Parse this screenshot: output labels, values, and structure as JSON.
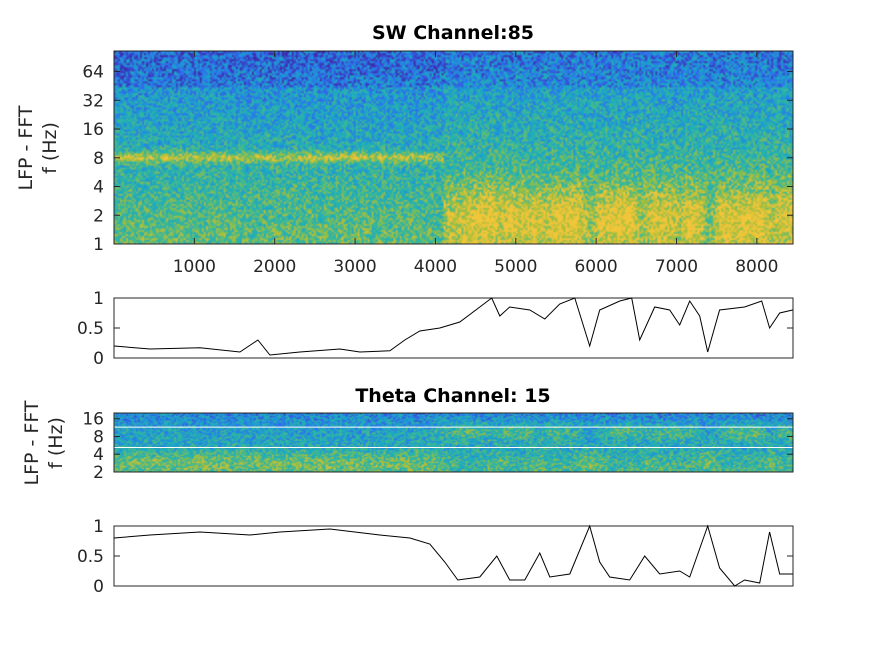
{
  "chart_data": [
    {
      "type": "heatmap",
      "title": "SW Channel:85",
      "ylabel": [
        "LFP - FFT",
        "f (Hz)"
      ],
      "xlabel": "",
      "xlim": [
        0,
        8450
      ],
      "ylim": [
        1,
        105
      ],
      "yscale": "log2",
      "xticks": [
        1000,
        2000,
        3000,
        4000,
        5000,
        6000,
        7000,
        8000
      ],
      "xtick_labels": [
        "1000",
        "2000",
        "3000",
        "4000",
        "5000",
        "6000",
        "7000",
        "8000"
      ],
      "yticks": [
        1,
        2,
        4,
        8,
        16,
        32,
        64
      ],
      "ytick_labels": [
        "1",
        "2",
        "4",
        "8",
        "16",
        "32",
        "64"
      ],
      "colormap": [
        "#3e26a8",
        "#2e6ff0",
        "#1aa6c8",
        "#35b99a",
        "#a5be3a",
        "#f3c63a"
      ]
    },
    {
      "type": "line",
      "title": "",
      "xlim": [
        0,
        8450
      ],
      "ylim": [
        0,
        1
      ],
      "yticks": [
        0,
        0.5,
        1
      ],
      "ytick_labels": [
        "0",
        "0.5",
        "1"
      ],
      "x": [
        0,
        448,
        1070,
        1567,
        1791,
        1940,
        2313,
        2811,
        3060,
        3433,
        3619,
        3806,
        4055,
        4303,
        4552,
        4701,
        4801,
        4925,
        5174,
        5361,
        5547,
        5734,
        5920,
        6045,
        6294,
        6443,
        6542,
        6729,
        6915,
        7040,
        7164,
        7289,
        7388,
        7537,
        7848,
        8060,
        8159,
        8284,
        8445
      ],
      "y": [
        0.2,
        0.15,
        0.17,
        0.1,
        0.3,
        0.05,
        0.1,
        0.15,
        0.1,
        0.12,
        0.3,
        0.45,
        0.5,
        0.6,
        0.85,
        1.0,
        0.7,
        0.85,
        0.8,
        0.65,
        0.9,
        1.0,
        0.2,
        0.8,
        0.95,
        1.0,
        0.3,
        0.85,
        0.8,
        0.55,
        0.95,
        0.7,
        0.1,
        0.8,
        0.85,
        0.95,
        0.5,
        0.75,
        0.8
      ]
    },
    {
      "type": "heatmap",
      "title": "Theta Channel: 15",
      "ylabel": [
        "LFP - FFT",
        "f (Hz)"
      ],
      "xlim": [
        0,
        8450
      ],
      "ylim": [
        2,
        20
      ],
      "yscale": "log2",
      "yticks": [
        2,
        4,
        8,
        16
      ],
      "ytick_labels": [
        "2",
        "4",
        "8",
        "16"
      ],
      "reference_lines_hz": [
        5.2,
        11.5
      ]
    },
    {
      "type": "line",
      "title": "",
      "xlim": [
        0,
        8450
      ],
      "ylim": [
        0,
        1
      ],
      "yticks": [
        0,
        0.5,
        1
      ],
      "ytick_labels": [
        "0",
        "0.5",
        "1"
      ],
      "x": [
        0,
        448,
        1070,
        1692,
        2065,
        2687,
        3308,
        3682,
        3930,
        4117,
        4279,
        4552,
        4764,
        4925,
        5112,
        5299,
        5423,
        5672,
        5920,
        6045,
        6169,
        6418,
        6604,
        6791,
        7040,
        7164,
        7388,
        7537,
        7724,
        7848,
        8035,
        8159,
        8284,
        8445
      ],
      "y": [
        0.8,
        0.85,
        0.9,
        0.85,
        0.9,
        0.95,
        0.85,
        0.8,
        0.7,
        0.4,
        0.1,
        0.15,
        0.5,
        0.1,
        0.1,
        0.55,
        0.15,
        0.2,
        1.0,
        0.4,
        0.15,
        0.1,
        0.5,
        0.2,
        0.25,
        0.15,
        1.0,
        0.3,
        0.0,
        0.1,
        0.05,
        0.9,
        0.2,
        0.2
      ]
    }
  ]
}
